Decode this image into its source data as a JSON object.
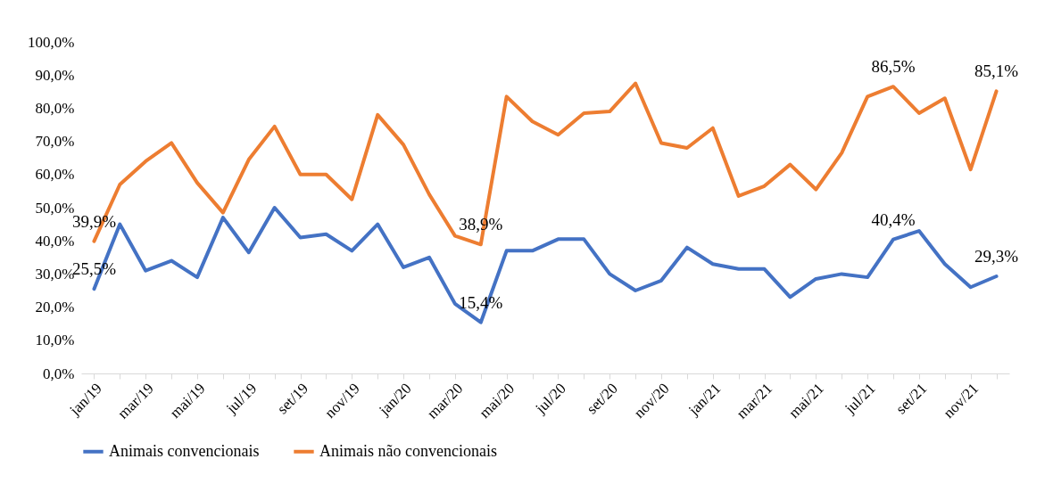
{
  "chart_data": {
    "type": "line",
    "categories": [
      "jan/19",
      null,
      "mar/19",
      null,
      "mai/19",
      null,
      "jul/19",
      null,
      "set/19",
      null,
      "nov/19",
      null,
      "jan/20",
      null,
      "mar/20",
      null,
      "mai/20",
      null,
      "jul/20",
      null,
      "set/20",
      null,
      "nov/20",
      null,
      "jan/21",
      null,
      "mar/21",
      null,
      "mai/21",
      null,
      "jul/21",
      null,
      "set/21",
      null,
      "nov/21",
      null
    ],
    "series": [
      {
        "name": "Animais convencionais",
        "color": "#4472c4",
        "values": [
          25.5,
          45,
          31,
          34,
          29,
          47,
          36.5,
          50,
          41,
          42,
          37,
          45,
          32,
          35,
          21,
          15.4,
          37,
          37,
          40.5,
          40.5,
          30,
          25,
          28,
          38,
          33,
          31.5,
          31.5,
          23,
          28.5,
          30,
          29,
          40.4,
          43,
          33,
          26,
          29.3
        ],
        "value_labels": [
          "25,5%",
          null,
          null,
          null,
          null,
          null,
          null,
          null,
          null,
          null,
          null,
          null,
          null,
          null,
          null,
          "15,4%",
          null,
          null,
          null,
          null,
          null,
          null,
          null,
          null,
          null,
          null,
          null,
          null,
          null,
          null,
          null,
          "40,4%",
          null,
          null,
          null,
          "29,3%"
        ]
      },
      {
        "name": "Animais não convencionais",
        "color": "#ed7d31",
        "values": [
          39.9,
          57,
          64,
          69.5,
          57.5,
          48.5,
          64.5,
          74.5,
          60,
          60,
          52.5,
          78,
          69,
          54,
          41.5,
          38.9,
          83.5,
          76,
          72,
          78.5,
          79,
          87.5,
          69.5,
          68,
          74,
          53.5,
          56.5,
          63,
          55.5,
          66.5,
          83.5,
          86.5,
          78.5,
          83,
          61.5,
          85.1
        ],
        "value_labels": [
          "39,9%",
          null,
          null,
          null,
          null,
          null,
          null,
          null,
          null,
          null,
          null,
          null,
          null,
          null,
          null,
          "38,9%",
          null,
          null,
          null,
          null,
          null,
          null,
          null,
          null,
          null,
          null,
          null,
          null,
          null,
          null,
          null,
          "86,5%",
          null,
          null,
          null,
          "85,1%"
        ]
      }
    ],
    "ylim": [
      0,
      100
    ],
    "yticks": [
      {
        "value": 0,
        "label": "0,0%"
      },
      {
        "value": 10,
        "label": "10,0%"
      },
      {
        "value": 20,
        "label": "20,0%"
      },
      {
        "value": 30,
        "label": "30,0%"
      },
      {
        "value": 40,
        "label": "40,0%"
      },
      {
        "value": 50,
        "label": "50,0%"
      },
      {
        "value": 60,
        "label": "60,0%"
      },
      {
        "value": 70,
        "label": "70,0%"
      },
      {
        "value": 80,
        "label": "80,0%"
      },
      {
        "value": 90,
        "label": "90,0%"
      },
      {
        "value": 100,
        "label": "100,0%"
      }
    ],
    "grid": false,
    "legend": "bottom",
    "line_style": "solid",
    "marker": "none"
  }
}
